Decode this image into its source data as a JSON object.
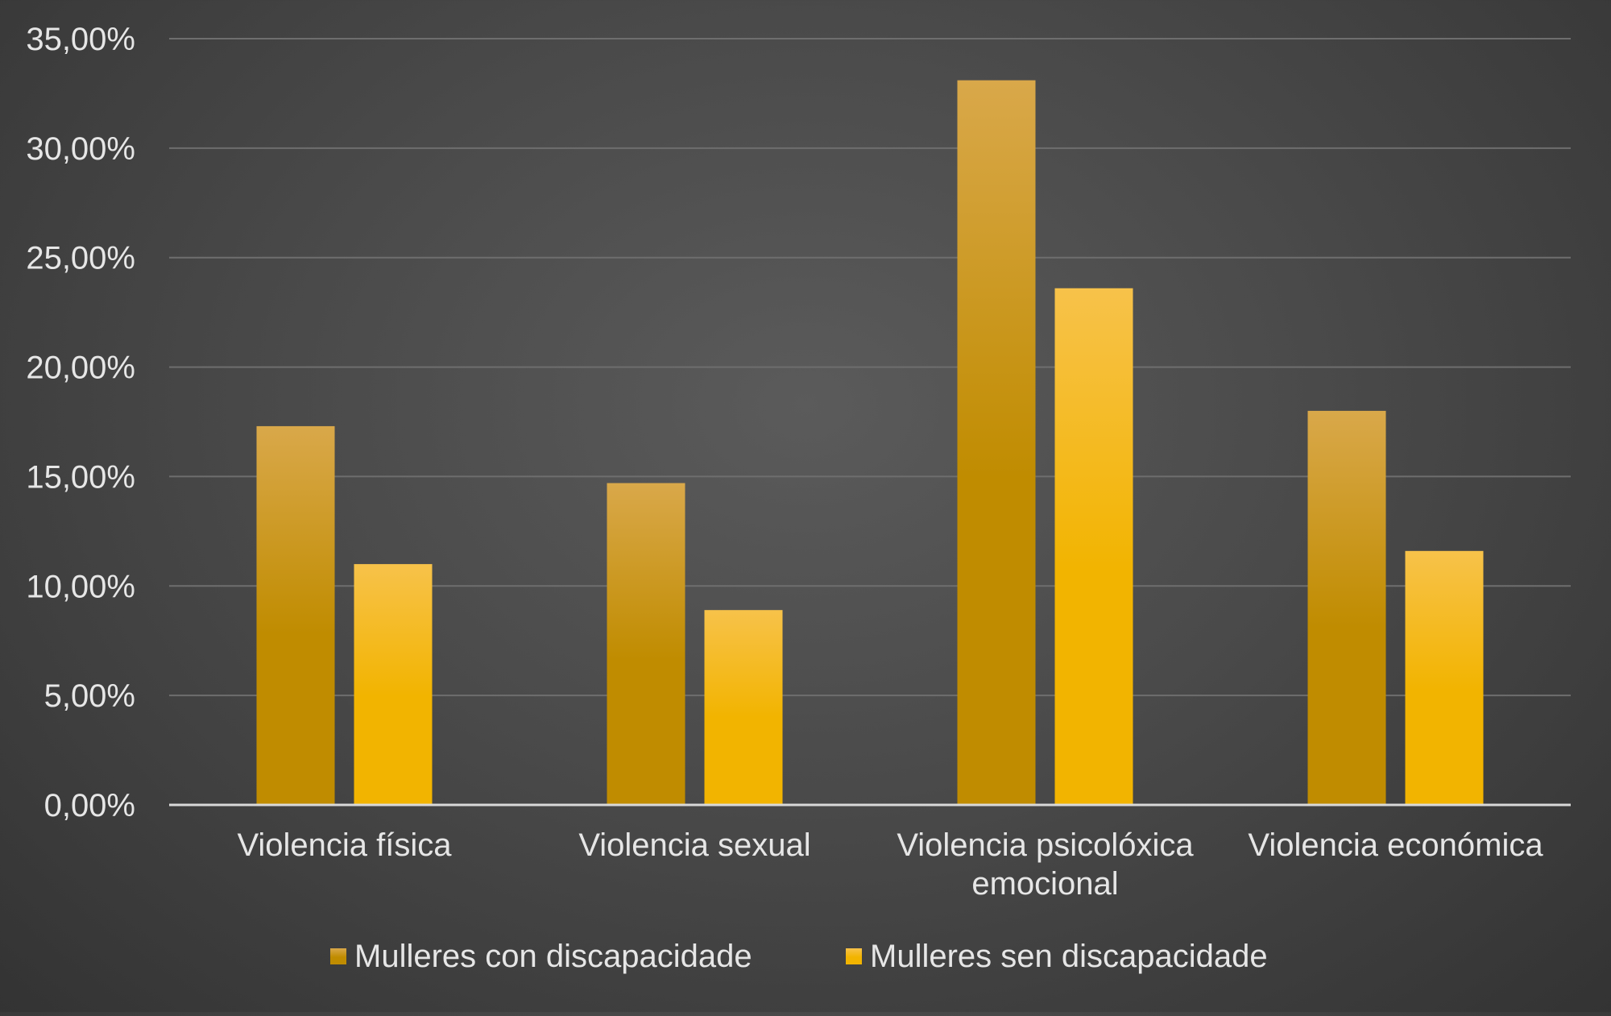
{
  "chart_data": {
    "type": "bar",
    "title": "",
    "xlabel": "",
    "ylabel": "",
    "ylim": [
      0,
      35
    ],
    "yticks": [
      0,
      5,
      10,
      15,
      20,
      25,
      30,
      35
    ],
    "ytick_labels": [
      "0,00%",
      "5,00%",
      "10,00%",
      "15,00%",
      "20,00%",
      "25,00%",
      "30,00%",
      "35,00%"
    ],
    "categories": [
      [
        "Violencia física"
      ],
      [
        "Violencia sexual"
      ],
      [
        "Violencia psicolóxica",
        "emocional"
      ],
      [
        "Violencia económica"
      ]
    ],
    "series": [
      {
        "name": "Mulleres con discapacidade",
        "values": [
          17.3,
          14.7,
          33.1,
          18.0
        ],
        "color_top": "#d9a84a",
        "color_bottom": "#c08c00"
      },
      {
        "name": "Mulleres sen discapacidade",
        "values": [
          11.0,
          8.9,
          23.6,
          11.6
        ],
        "color_top": "#f7c24a",
        "color_bottom": "#f2b400"
      }
    ],
    "legend": "bottom",
    "grid": true
  }
}
